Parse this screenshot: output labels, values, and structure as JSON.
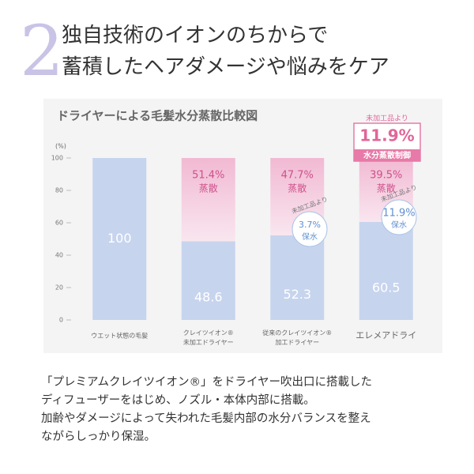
{
  "heading": {
    "number": "2",
    "lines": [
      "独自技術のイオンのちからで",
      "蓄積したヘアダメージや悩みをケア"
    ]
  },
  "chart_data": {
    "type": "stacked_bar",
    "title": "ドライヤーによる毛髪水分蒸散比較図",
    "y_unit": "(%)",
    "categories": [
      "ウエット状態の毛髪",
      "クレイツイオン®\n未加工ドライヤー",
      "従来のクレイツイオン®\n加工ドライヤー",
      "エレメアドライ"
    ],
    "series": [
      {
        "color": "#c7d4ee",
        "values": [
          100,
          48.6,
          52.3,
          60.5
        ]
      },
      {
        "color": "#f3c4da",
        "values": [
          null,
          51.4,
          47.7,
          39.5
        ],
        "value_labels": [
          null,
          "51.4%",
          "47.7%",
          "39.5%"
        ],
        "sub_label": "蒸散"
      }
    ],
    "ylim": [
      0,
      100
    ],
    "yticks": [
      0,
      20,
      40,
      60,
      80,
      100
    ],
    "annotations": [
      {
        "lead": "未加工品より",
        "value": "11.9%",
        "tail": "水分蒸散制御"
      },
      {
        "lead": "未加工品より",
        "value": "3.7%",
        "tail": "保水"
      },
      {
        "lead": "未加工品より",
        "value": "11.9%",
        "tail": "保水"
      }
    ]
  },
  "body": [
    "「プレミアムクレイツイオン®」をドライヤー吹出口に搭載した",
    "ディフューザーをはじめ、ノズル・本体内部に搭載。",
    "加齢やダメージによって失われた毛髪内部の水分バランスを整え",
    "ながらしっかり保湿。"
  ]
}
